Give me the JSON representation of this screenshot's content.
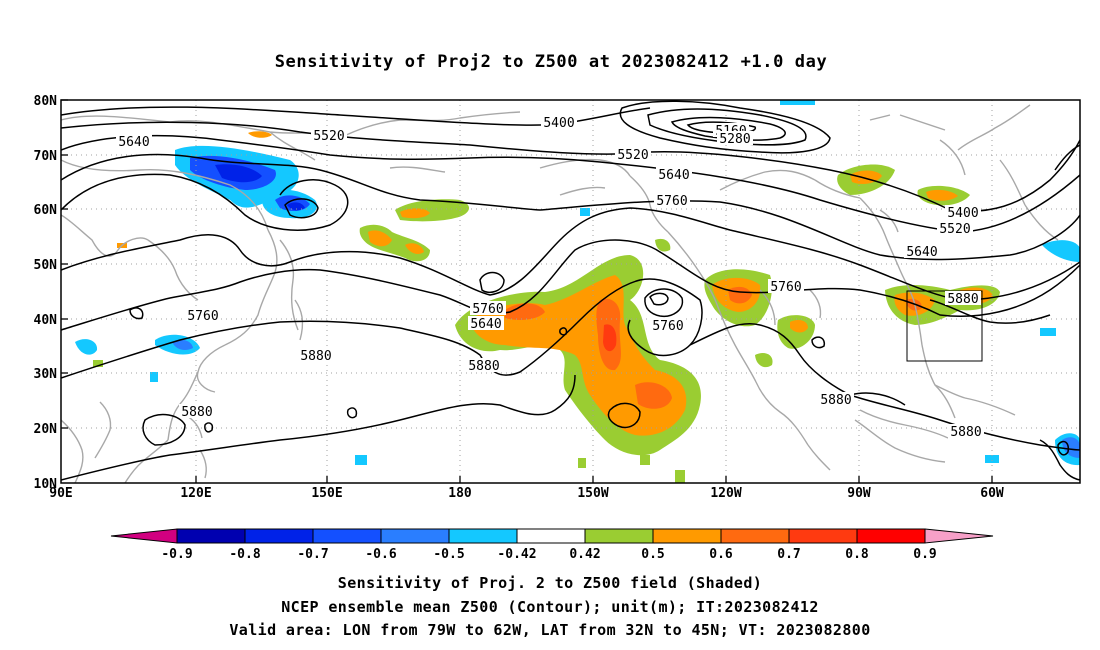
{
  "title": "Sensitivity of Proj2 to Z500 at 2023082412 +1.0 day",
  "lat_labels": [
    "80N",
    "70N",
    "60N",
    "50N",
    "40N",
    "30N",
    "20N",
    "10N"
  ],
  "lon_labels": [
    "90E",
    "120E",
    "150E",
    "180",
    "150W",
    "120W",
    "90W",
    "60W"
  ],
  "contour_labels": [
    {
      "text": "5640"
    },
    {
      "text": "5520"
    },
    {
      "text": "5400"
    },
    {
      "text": "5160"
    },
    {
      "text": "5280"
    },
    {
      "text": "5520"
    },
    {
      "text": "5640"
    },
    {
      "text": "5760"
    },
    {
      "text": "5400"
    },
    {
      "text": "5520"
    },
    {
      "text": "5640"
    },
    {
      "text": "5760"
    },
    {
      "text": "5880"
    },
    {
      "text": "5760"
    },
    {
      "text": "5640"
    },
    {
      "text": "5760"
    },
    {
      "text": "5760"
    },
    {
      "text": "5880"
    },
    {
      "text": "5880"
    },
    {
      "text": "5880"
    },
    {
      "text": "5880"
    },
    {
      "text": "5880"
    }
  ],
  "colorbar": {
    "labels": [
      "-0.9",
      "-0.8",
      "-0.7",
      "-0.6",
      "-0.5",
      "-0.42",
      "0.42",
      "0.5",
      "0.6",
      "0.7",
      "0.8",
      "0.9"
    ],
    "colors": [
      "#0000b0",
      "#0022e8",
      "#1450ff",
      "#2a7eff",
      "#14c8ff",
      "#ffffff",
      "#9acd32",
      "#ff9a00",
      "#ff6a10",
      "#ff3a10",
      "#ff0000"
    ],
    "min_color": "#d10080",
    "max_color": "#f7a0c8"
  },
  "captions": {
    "line1": "Sensitivity of Proj. 2 to Z500 field (Shaded)",
    "line2": "NCEP ensemble mean Z500 (Contour); unit(m); IT:2023082412",
    "line3": "Valid area: LON from 79W to 62W, LAT from 32N to 45N; VT: 2023082800"
  },
  "colors": {
    "contour": "#000000",
    "coastline": "#a8a8a8",
    "grid": "#a0a0a0"
  }
}
